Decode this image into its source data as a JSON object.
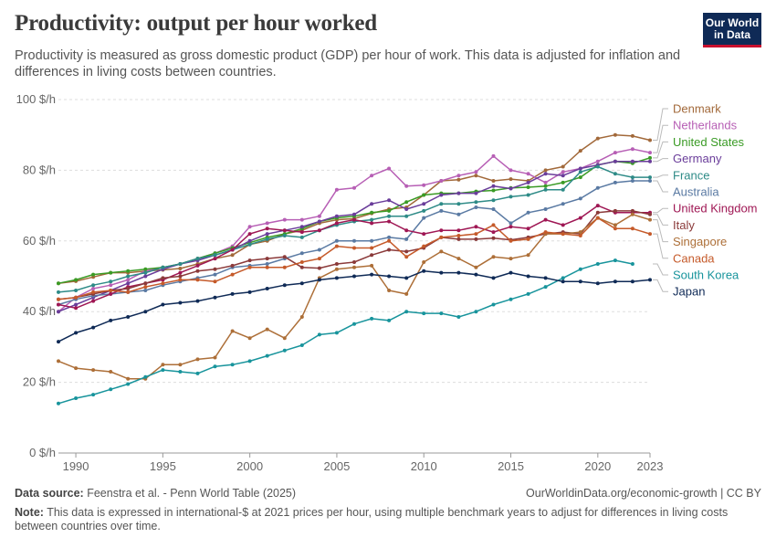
{
  "header": {
    "title": "Productivity: output per hour worked",
    "subtitle": "Productivity is measured as gross domestic product (GDP) per hour of work. This data is adjusted for inflation and differences in living costs between countries."
  },
  "logo": {
    "line1": "Our World",
    "line2": "in Data",
    "bg_color": "#0f2a56",
    "accent_color": "#c8102e"
  },
  "footer": {
    "source_label": "Data source:",
    "source_text": " Feenstra et al. - Penn World Table (2025)",
    "credit": "OurWorldinData.org/economic-growth | CC BY",
    "note_label": "Note:",
    "note_text": " This data is expressed in international-$ at 2021 prices per hour, using multiple benchmark years to adjust for differences in living costs between countries over time."
  },
  "chart_data": {
    "type": "line",
    "title": "Productivity: output per hour worked",
    "xlim": [
      1989,
      2023
    ],
    "ylim": [
      0,
      100
    ],
    "x_ticks": [
      {
        "value": 1990,
        "label": "1990"
      },
      {
        "value": 1995,
        "label": "1995"
      },
      {
        "value": 2000,
        "label": "2000"
      },
      {
        "value": 2005,
        "label": "2005"
      },
      {
        "value": 2010,
        "label": "2010"
      },
      {
        "value": 2015,
        "label": "2015"
      },
      {
        "value": 2020,
        "label": "2020"
      },
      {
        "value": 2023,
        "label": "2023"
      }
    ],
    "y_ticks": [
      {
        "value": 0,
        "label": "0 $/h"
      },
      {
        "value": 20,
        "label": "20 $/h"
      },
      {
        "value": 40,
        "label": "40 $/h"
      },
      {
        "value": 60,
        "label": "60 $/h"
      },
      {
        "value": 80,
        "label": "80 $/h"
      },
      {
        "value": 100,
        "label": "100 $/h"
      }
    ],
    "grid": "horizontal dashed",
    "legend": "right",
    "start_year": 1989,
    "series": [
      {
        "name": "Denmark",
        "color": "#a2693a",
        "values": [
          48.0,
          48.6,
          49.8,
          51.0,
          51.0,
          51.5,
          51.8,
          52.2,
          53.5,
          55.0,
          56.0,
          59.0,
          60.0,
          62.0,
          63.0,
          65.0,
          66.0,
          66.3,
          67.8,
          69.0,
          69.5,
          73.0,
          77.0,
          77.3,
          78.5,
          77.0,
          77.5,
          77.0,
          80.0,
          81.0,
          85.5,
          89.0,
          90.0,
          89.7,
          88.5
        ]
      },
      {
        "name": "Netherlands",
        "color": "#b75fb5",
        "values": [
          40.0,
          44.0,
          46.5,
          47.5,
          49.0,
          51.5,
          52.5,
          53.5,
          55.0,
          56.5,
          58.5,
          64.0,
          65.0,
          66.0,
          66.0,
          67.0,
          74.5,
          75.0,
          78.5,
          80.5,
          75.5,
          75.8,
          77.0,
          78.5,
          79.5,
          84.0,
          80.0,
          79.0,
          76.5,
          79.5,
          80.5,
          82.5,
          85.0,
          86.0,
          85.0
        ]
      },
      {
        "name": "United States",
        "color": "#3a9b25",
        "values": [
          48.0,
          49.0,
          50.5,
          51.0,
          51.5,
          52.0,
          52.5,
          53.5,
          55.0,
          56.5,
          58.0,
          59.5,
          61.0,
          62.0,
          63.5,
          65.5,
          66.5,
          67.0,
          68.0,
          68.5,
          71.0,
          73.0,
          73.5,
          73.5,
          74.0,
          74.3,
          75.0,
          75.2,
          75.5,
          76.5,
          78.0,
          81.5,
          82.5,
          82.0,
          83.5
        ]
      },
      {
        "name": "Germany",
        "color": "#6a3d9a",
        "values": [
          40.0,
          42.0,
          44.0,
          46.0,
          48.0,
          50.0,
          52.0,
          53.5,
          54.5,
          56.0,
          57.5,
          60.0,
          62.0,
          63.0,
          64.0,
          65.5,
          67.0,
          67.5,
          70.5,
          71.5,
          69.0,
          70.5,
          73.0,
          73.5,
          73.5,
          75.5,
          74.8,
          76.5,
          79.0,
          78.5,
          80.5,
          81.5,
          82.5,
          82.5,
          82.5
        ]
      },
      {
        "name": "France",
        "color": "#2e8b87",
        "values": [
          45.5,
          46.0,
          47.5,
          48.5,
          50.0,
          51.0,
          52.5,
          53.5,
          55.0,
          56.0,
          57.5,
          59.0,
          60.5,
          61.5,
          61.0,
          63.0,
          64.5,
          65.5,
          66.0,
          67.0,
          67.0,
          68.5,
          70.5,
          70.5,
          71.0,
          71.5,
          72.5,
          73.0,
          74.5,
          74.5,
          79.5,
          81.0,
          79.0,
          78.0,
          78.0
        ]
      },
      {
        "name": "Australia",
        "color": "#5a7aa3",
        "values": [
          42.0,
          43.5,
          44.5,
          45.0,
          45.5,
          46.0,
          47.5,
          48.5,
          49.5,
          50.5,
          52.5,
          53.0,
          53.5,
          55.0,
          56.5,
          57.5,
          60.0,
          60.0,
          60.0,
          61.0,
          60.5,
          66.5,
          68.5,
          67.5,
          69.5,
          69.0,
          65.0,
          68.0,
          69.0,
          70.5,
          72.0,
          75.0,
          76.5,
          77.0,
          77.0
        ]
      },
      {
        "name": "United Kingdom",
        "color": "#9f1754",
        "values": [
          42.0,
          41.0,
          43.0,
          45.0,
          47.0,
          48.0,
          49.0,
          51.0,
          53.0,
          55.0,
          57.5,
          62.0,
          63.5,
          63.0,
          62.5,
          63.0,
          65.0,
          66.0,
          65.0,
          65.5,
          63.0,
          62.0,
          63.0,
          63.0,
          64.0,
          62.5,
          64.0,
          63.5,
          66.0,
          64.5,
          66.5,
          70.0,
          68.0,
          68.0,
          68.0
        ]
      },
      {
        "name": "Italy",
        "color": "#8b3a3a",
        "values": [
          43.5,
          44.0,
          45.0,
          46.0,
          46.5,
          48.0,
          49.5,
          50.0,
          51.5,
          52.0,
          53.0,
          54.5,
          55.0,
          55.5,
          52.5,
          52.3,
          53.5,
          54.0,
          56.0,
          57.5,
          57.0,
          58.0,
          61.0,
          60.5,
          60.5,
          60.8,
          60.3,
          61.0,
          62.0,
          62.5,
          62.0,
          68.0,
          68.5,
          68.5,
          67.5
        ]
      },
      {
        "name": "Singapore",
        "color": "#ad6f38",
        "values": [
          26.0,
          24.0,
          23.5,
          23.0,
          21.0,
          21.0,
          25.0,
          25.0,
          26.5,
          27.0,
          34.5,
          32.5,
          35.0,
          32.5,
          38.5,
          49.5,
          52.0,
          52.5,
          53.0,
          46.0,
          45.0,
          54.0,
          57.0,
          55.0,
          52.5,
          55.5,
          55.0,
          56.0,
          62.0,
          62.0,
          62.5,
          66.5,
          64.5,
          67.5,
          66.0
        ]
      },
      {
        "name": "Canada",
        "color": "#c55a2a",
        "values": [
          43.5,
          44.0,
          45.5,
          46.0,
          45.5,
          47.0,
          48.0,
          49.0,
          49.0,
          48.5,
          50.5,
          52.5,
          52.5,
          52.5,
          54.0,
          55.0,
          58.5,
          58.0,
          58.0,
          60.0,
          55.5,
          58.5,
          61.0,
          61.5,
          62.0,
          64.5,
          60.0,
          60.5,
          62.5,
          62.0,
          61.5,
          66.5,
          63.5,
          63.5,
          62.0
        ]
      },
      {
        "name": "South Korea",
        "color": "#18949c",
        "values": [
          14.0,
          15.5,
          16.5,
          18.0,
          19.5,
          21.5,
          23.5,
          23.0,
          22.5,
          24.5,
          25.0,
          26.0,
          27.5,
          29.0,
          30.5,
          33.5,
          34.0,
          36.5,
          38.0,
          37.5,
          40.0,
          39.5,
          39.5,
          38.5,
          40.0,
          42.0,
          43.5,
          45.0,
          47.0,
          49.5,
          52.0,
          53.5,
          54.5,
          53.5,
          null
        ]
      },
      {
        "name": "Japan",
        "color": "#0f2a56",
        "values": [
          31.5,
          34.0,
          35.5,
          37.5,
          38.5,
          40.0,
          42.0,
          42.5,
          43.0,
          44.0,
          45.0,
          45.5,
          46.5,
          47.5,
          48.0,
          49.0,
          49.5,
          50.0,
          50.5,
          50.0,
          49.5,
          51.5,
          51.0,
          51.0,
          50.5,
          49.5,
          51.0,
          50.0,
          49.5,
          48.5,
          48.5,
          48.0,
          48.5,
          48.5,
          49.0
        ]
      }
    ]
  }
}
